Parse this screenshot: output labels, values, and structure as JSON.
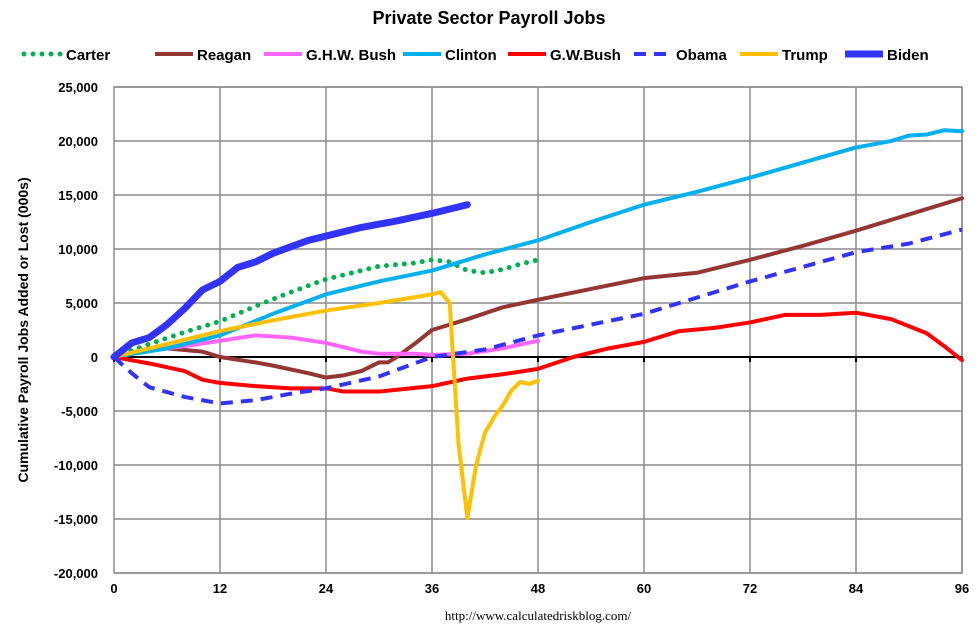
{
  "chart_data": {
    "type": "line",
    "title": "Private Sector Payroll Jobs",
    "xlabel": "",
    "ylabel": "Cumulative Payroll Jobs Added or  Lost (000s)",
    "source": "http://www.calculatedriskblog.com/",
    "xlim": [
      0,
      96
    ],
    "ylim": [
      -20000,
      25000
    ],
    "x_ticks": [
      "0",
      "12",
      "24",
      "36",
      "48",
      "60",
      "72",
      "84",
      "96"
    ],
    "y_ticks": [
      "25,000",
      "20,000",
      "15,000",
      "10,000",
      "5,000",
      "0",
      "-5,000",
      "-10,000",
      "-15,000",
      "-20,000"
    ],
    "grid": true,
    "legend_position": "top",
    "series": [
      {
        "name": "Carter",
        "color": "#00B050",
        "style": "dotted",
        "x": [
          0,
          4,
          8,
          12,
          16,
          20,
          24,
          28,
          30,
          34,
          36,
          38,
          40,
          42,
          44,
          46,
          48
        ],
        "y": [
          0,
          1200,
          2300,
          3300,
          4700,
          6000,
          7200,
          8000,
          8400,
          8700,
          9000,
          8800,
          8000,
          7800,
          8100,
          8600,
          9000
        ]
      },
      {
        "name": "Reagan",
        "color": "#943634",
        "style": "solid",
        "x": [
          0,
          3,
          6,
          10,
          12,
          16,
          18,
          22,
          24,
          26,
          28,
          30,
          31,
          32,
          34,
          36,
          40,
          44,
          48,
          54,
          60,
          66,
          72,
          78,
          84,
          90,
          96
        ],
        "y": [
          0,
          600,
          800,
          500,
          0,
          -500,
          -800,
          -1500,
          -1900,
          -1700,
          -1300,
          -500,
          -500,
          0,
          1200,
          2500,
          3500,
          4600,
          5300,
          6300,
          7300,
          7800,
          9000,
          10300,
          11700,
          13200,
          14700
        ]
      },
      {
        "name": "G.H.W. Bush",
        "color": "#FF66FF",
        "style": "solid",
        "x": [
          0,
          4,
          8,
          12,
          16,
          20,
          24,
          28,
          30,
          34,
          36,
          40,
          44,
          48
        ],
        "y": [
          0,
          600,
          1000,
          1500,
          2000,
          1800,
          1300,
          500,
          300,
          300,
          200,
          300,
          800,
          1500
        ]
      },
      {
        "name": "Clinton",
        "color": "#00B0F0",
        "style": "solid",
        "x": [
          0,
          6,
          12,
          18,
          24,
          30,
          36,
          42,
          48,
          54,
          60,
          66,
          72,
          78,
          84,
          88,
          90,
          92,
          94,
          96
        ],
        "y": [
          0,
          800,
          2000,
          4000,
          5800,
          7000,
          8000,
          9500,
          10800,
          12500,
          14100,
          15300,
          16600,
          18000,
          19400,
          20000,
          20500,
          20600,
          21000,
          20900
        ]
      },
      {
        "name": "G.W.Bush",
        "color": "#FF0000",
        "style": "solid",
        "x": [
          0,
          4,
          8,
          10,
          12,
          16,
          20,
          24,
          26,
          30,
          36,
          40,
          44,
          48,
          52,
          56,
          60,
          64,
          68,
          72,
          76,
          80,
          84,
          88,
          92,
          94,
          96
        ],
        "y": [
          0,
          -600,
          -1300,
          -2100,
          -2400,
          -2700,
          -2900,
          -2900,
          -3200,
          -3200,
          -2700,
          -2000,
          -1600,
          -1100,
          0,
          800,
          1400,
          2400,
          2700,
          3200,
          3900,
          3900,
          4100,
          3500,
          2200,
          1000,
          -300
        ]
      },
      {
        "name": "Obama",
        "color": "#3333FF",
        "style": "dashed",
        "x": [
          0,
          2,
          4,
          8,
          12,
          16,
          20,
          24,
          30,
          36,
          42,
          48,
          60,
          72,
          84,
          90,
          96
        ],
        "y": [
          0,
          -1500,
          -2800,
          -3700,
          -4300,
          -4000,
          -3400,
          -2900,
          -1800,
          0,
          700,
          2000,
          4000,
          7000,
          9700,
          10500,
          11800
        ]
      },
      {
        "name": "Trump",
        "color": "#FFC000",
        "style": "solid",
        "x": [
          0,
          6,
          12,
          18,
          24,
          30,
          36,
          37,
          38,
          39,
          40,
          41,
          42,
          43,
          44,
          45,
          46,
          47,
          48
        ],
        "y": [
          0,
          1200,
          2400,
          3400,
          4300,
          5000,
          5800,
          6000,
          5000,
          -8000,
          -14900,
          -10000,
          -7000,
          -5600,
          -4500,
          -3100,
          -2300,
          -2500,
          -2200
        ]
      },
      {
        "name": "Biden",
        "color": "#3333FF",
        "style": "thick",
        "x": [
          0,
          2,
          4,
          6,
          8,
          10,
          12,
          14,
          16,
          18,
          20,
          22,
          24,
          28,
          32,
          36,
          40
        ],
        "y": [
          0,
          1300,
          1800,
          3000,
          4500,
          6200,
          7000,
          8300,
          8800,
          9600,
          10200,
          10800,
          11200,
          12000,
          12600,
          13300,
          14100
        ]
      }
    ]
  }
}
